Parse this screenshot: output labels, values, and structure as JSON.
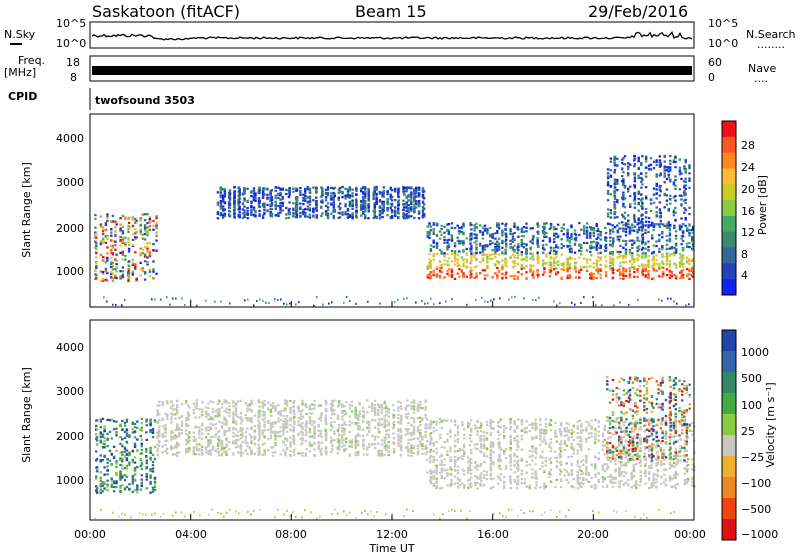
{
  "header": {
    "site": "Saskatoon (fitACF)",
    "beam": "Beam 15",
    "date": "29/Feb/2016"
  },
  "nsky": {
    "label": "N.Sky",
    "right_label": "N.Search",
    "right_dots": "........",
    "left_ticks": [
      "10^5",
      "10^0"
    ],
    "right_ticks": [
      "10^5",
      "10^0"
    ]
  },
  "freq": {
    "label_top": "Freq.",
    "label_unit": "[MHz]",
    "left_ticks": [
      "18",
      "8"
    ],
    "right_label": "Nave",
    "right_dots": "....",
    "right_ticks": [
      "60",
      "0"
    ]
  },
  "cpid": {
    "label": "CPID",
    "value": "twofsound 3503"
  },
  "chart_data": [
    {
      "type": "heatmap",
      "name": "power",
      "ylabel": "Slant Range [km]",
      "xlabel": "Time UT",
      "ylim": [
        200,
        4500
      ],
      "yticks": [
        "1000",
        "2000",
        "3000",
        "4000"
      ],
      "xticks": [
        "00:00",
        "04:00",
        "08:00",
        "12:00",
        "16:00",
        "20:00",
        "00:00"
      ],
      "colorbar": {
        "label": "Power [dB]",
        "ticks": [
          "28",
          "24",
          "20",
          "16",
          "12",
          "8",
          "4"
        ],
        "colors": [
          "#ee1111",
          "#ff5522",
          "#ff8822",
          "#ffbb33",
          "#cccc22",
          "#88cc44",
          "#44aa66",
          "#3a8a6e",
          "#336699",
          "#2244bb",
          "#1122ee"
        ]
      },
      "regions": [
        {
          "t": [
            0.1,
            2.6
          ],
          "r": [
            800,
            2300
          ],
          "level": "mixed-high"
        },
        {
          "t": [
            5.0,
            13.3
          ],
          "r": [
            2200,
            2900
          ],
          "level": "low"
        },
        {
          "t": [
            13.3,
            24.0
          ],
          "r": [
            850,
            2100
          ],
          "level": "high"
        },
        {
          "t": [
            20.5,
            23.8
          ],
          "r": [
            2000,
            3600
          ],
          "level": "low"
        }
      ]
    },
    {
      "type": "heatmap",
      "name": "velocity",
      "ylabel": "Slant Range [km]",
      "xlabel": "Time UT",
      "ylim": [
        200,
        4500
      ],
      "yticks": [
        "1000",
        "2000",
        "3000",
        "4000"
      ],
      "xticks": [
        "00:00",
        "04:00",
        "08:00",
        "12:00",
        "16:00",
        "20:00",
        "00:00"
      ],
      "colorbar": {
        "label": "Velocity [m s⁻¹]",
        "ticks": [
          "1000",
          "500",
          "100",
          "25",
          "−25",
          "−100",
          "−500",
          "−1000"
        ],
        "colors": [
          "#2244aa",
          "#3366aa",
          "#338866",
          "#44aa44",
          "#88cc44",
          "#c8c8c0",
          "#f0b030",
          "#ee8822",
          "#ee4411",
          "#dd1111"
        ]
      },
      "regions": [
        {
          "t": [
            0.1,
            2.6
          ],
          "r": [
            800,
            2400
          ],
          "level": "positive"
        },
        {
          "t": [
            2.6,
            13.3
          ],
          "r": [
            1600,
            2800
          ],
          "level": "ground"
        },
        {
          "t": [
            13.3,
            24.0
          ],
          "r": [
            900,
            2400
          ],
          "level": "ground"
        },
        {
          "t": [
            20.5,
            23.8
          ],
          "r": [
            1500,
            3300
          ],
          "level": "mixed"
        }
      ]
    }
  ]
}
